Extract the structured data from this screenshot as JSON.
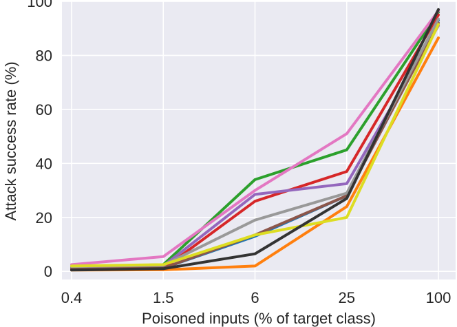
{
  "chart_data": {
    "type": "line",
    "title": "",
    "xlabel": "Poisoned inputs (% of target class)",
    "ylabel": "Attack success rate (%)",
    "x": [
      "0.4",
      "1.5",
      "6",
      "25",
      "100"
    ],
    "ylim": [
      -3,
      100
    ],
    "yticks": [
      0,
      20,
      40,
      60,
      80,
      100
    ],
    "grid": true,
    "legend": "none",
    "series": [
      {
        "color": "#1f77b4",
        "values": [
          1.0,
          1.2,
          13.0,
          28.0,
          93.0
        ]
      },
      {
        "color": "#ff7f0e",
        "values": [
          0.5,
          0.6,
          2.0,
          24.0,
          86.5
        ]
      },
      {
        "color": "#2ca02c",
        "values": [
          1.5,
          2.5,
          34.0,
          45.0,
          96.0
        ]
      },
      {
        "color": "#d62728",
        "values": [
          1.0,
          1.0,
          26.0,
          37.0,
          95.0
        ]
      },
      {
        "color": "#9467bd",
        "values": [
          1.5,
          2.0,
          28.5,
          32.5,
          91.0
        ]
      },
      {
        "color": "#8c564b",
        "values": [
          1.0,
          1.2,
          13.5,
          28.0,
          92.0
        ]
      },
      {
        "color": "#e377c2",
        "values": [
          2.5,
          5.5,
          30.0,
          51.0,
          96.5
        ]
      },
      {
        "color": "#999999",
        "values": [
          1.8,
          2.3,
          19.0,
          29.0,
          93.5
        ]
      },
      {
        "color": "#dddd22",
        "values": [
          2.0,
          2.5,
          13.5,
          20.0,
          91.5
        ]
      },
      {
        "color": "#333333",
        "values": [
          0.5,
          1.0,
          6.5,
          27.0,
          97.0
        ]
      }
    ]
  }
}
